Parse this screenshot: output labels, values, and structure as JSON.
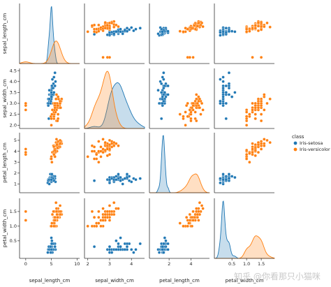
{
  "chart_data": {
    "type": "scatter",
    "kind": "pairplot",
    "variables": [
      "sepal_length_cm",
      "sepal_width_cm",
      "petal_length_cm",
      "petal_width_cm"
    ],
    "legend": {
      "title": "class",
      "placement": "right",
      "entries": [
        {
          "label": "Iris-setosa",
          "color": "#1f77b4"
        },
        {
          "label": "Iris-versicolor",
          "color": "#ff7f0e"
        }
      ]
    },
    "ranges": {
      "sepal_length_cm": [
        -1.2,
        10.5
      ],
      "sepal_width_cm": [
        1.85,
        4.6
      ],
      "petal_length_cm": [
        0.2,
        5.7
      ],
      "petal_width_cm": [
        -0.1,
        1.95
      ]
    },
    "x_ticks": {
      "sepal_length_cm": [
        "0",
        "5",
        "10"
      ],
      "sepal_width_cm": [
        "2",
        "3",
        "4"
      ],
      "petal_length_cm": [
        "2",
        "4"
      ],
      "petal_width_cm": [
        "0.5",
        "1.0",
        "1.5"
      ]
    },
    "y_ticks": {
      "sepal_length_cm": [],
      "sepal_width_cm": [
        "2.0",
        "2.5",
        "3.0",
        "3.5",
        "4.0",
        "4.5"
      ],
      "petal_length_cm": [
        "1",
        "2",
        "3",
        "4",
        "5"
      ],
      "petal_width_cm": [
        "0.5",
        "1.0",
        "1.5"
      ]
    },
    "tick_values": {
      "sepal_length_cm": [
        0,
        5,
        10
      ],
      "sepal_width_cm": [
        2,
        2.5,
        3,
        3.5,
        4,
        4.5
      ],
      "petal_length_cm": [
        1,
        2,
        3,
        4,
        5
      ],
      "petal_width_cm": [
        0.5,
        1.0,
        1.5
      ]
    },
    "series": [
      {
        "name": "Iris-setosa",
        "sepal_length_cm": [
          5.1,
          4.9,
          4.7,
          4.6,
          5.0,
          5.4,
          4.6,
          5.0,
          4.4,
          4.9,
          5.4,
          4.8,
          4.8,
          4.3,
          5.8,
          5.7,
          5.4,
          5.1,
          5.7,
          5.1,
          5.4,
          5.1,
          4.6,
          5.1,
          4.8,
          5.0,
          5.0,
          5.2,
          5.2,
          4.7,
          4.8,
          5.4,
          5.2,
          5.5,
          4.9,
          5.0,
          5.5,
          4.9,
          4.4,
          5.1,
          5.0,
          4.5,
          4.4,
          5.0,
          5.1,
          4.8,
          5.1,
          4.6,
          5.3,
          5.0
        ],
        "sepal_width_cm": [
          3.5,
          3.0,
          3.2,
          3.1,
          3.6,
          3.9,
          3.4,
          3.4,
          2.9,
          3.1,
          3.7,
          3.4,
          3.0,
          3.0,
          4.0,
          4.4,
          3.9,
          3.5,
          3.8,
          3.8,
          3.4,
          3.7,
          3.6,
          3.3,
          3.4,
          3.0,
          3.4,
          3.5,
          3.4,
          3.2,
          3.1,
          3.4,
          4.1,
          4.2,
          3.1,
          3.2,
          3.5,
          3.1,
          3.0,
          3.4,
          3.5,
          2.3,
          3.2,
          3.5,
          3.8,
          3.0,
          3.8,
          3.2,
          3.7,
          3.3
        ],
        "petal_length_cm": [
          1.4,
          1.4,
          1.3,
          1.5,
          1.4,
          1.7,
          1.4,
          1.5,
          1.4,
          1.5,
          1.5,
          1.6,
          1.4,
          1.1,
          1.2,
          1.5,
          1.3,
          1.4,
          1.7,
          1.5,
          1.7,
          1.5,
          1.0,
          1.7,
          1.9,
          1.6,
          1.6,
          1.5,
          1.4,
          1.6,
          1.6,
          1.5,
          1.5,
          1.4,
          1.5,
          1.2,
          1.3,
          1.5,
          1.3,
          1.5,
          1.3,
          1.3,
          1.3,
          1.6,
          1.9,
          1.4,
          1.6,
          1.4,
          1.5,
          1.4
        ],
        "petal_width_cm": [
          0.2,
          0.2,
          0.2,
          0.2,
          0.2,
          0.4,
          0.3,
          0.2,
          0.2,
          0.1,
          0.2,
          0.2,
          0.1,
          0.1,
          0.2,
          0.4,
          0.4,
          0.3,
          0.3,
          0.3,
          0.2,
          0.4,
          0.2,
          0.5,
          0.2,
          0.2,
          0.4,
          0.2,
          0.2,
          0.2,
          0.2,
          0.4,
          0.1,
          0.2,
          0.1,
          0.2,
          0.2,
          0.1,
          0.2,
          0.2,
          0.3,
          0.3,
          0.2,
          0.6,
          0.4,
          0.3,
          0.2,
          0.2,
          0.2,
          0.2
        ]
      },
      {
        "name": "Iris-versicolor",
        "sepal_length_cm": [
          7.0,
          6.4,
          6.9,
          5.5,
          6.5,
          5.7,
          6.3,
          4.9,
          6.6,
          5.2,
          5.0,
          5.9,
          6.0,
          6.1,
          5.6,
          6.7,
          5.6,
          5.8,
          6.2,
          5.6,
          5.9,
          6.1,
          6.3,
          6.1,
          6.4,
          6.6,
          6.8,
          6.7,
          6.0,
          5.7,
          5.5,
          5.5,
          5.8,
          6.0,
          5.4,
          6.0,
          6.7,
          6.3,
          5.6,
          5.5,
          5.5,
          6.1,
          5.8,
          5.0,
          5.6,
          5.7,
          5.7,
          6.2,
          5.1,
          5.7,
          0.0,
          0.0,
          0.0
        ],
        "sepal_width_cm": [
          3.2,
          3.2,
          3.1,
          2.3,
          2.8,
          2.8,
          3.3,
          2.4,
          2.9,
          2.7,
          2.0,
          3.0,
          2.2,
          2.9,
          2.9,
          3.1,
          3.0,
          2.7,
          2.2,
          2.5,
          3.2,
          2.8,
          2.5,
          2.8,
          2.9,
          3.0,
          2.8,
          3.0,
          2.9,
          2.6,
          2.4,
          2.4,
          2.7,
          2.7,
          3.0,
          3.4,
          3.1,
          2.3,
          3.0,
          2.5,
          2.6,
          3.0,
          2.6,
          2.3,
          2.7,
          3.0,
          2.9,
          2.9,
          2.5,
          2.8,
          2.9,
          3.0,
          2.7
        ],
        "petal_length_cm": [
          4.7,
          4.5,
          4.9,
          4.0,
          4.6,
          4.5,
          4.7,
          3.3,
          4.6,
          3.9,
          3.5,
          4.2,
          4.0,
          4.7,
          3.6,
          4.4,
          4.5,
          4.1,
          4.5,
          3.9,
          4.8,
          4.0,
          4.9,
          4.7,
          4.3,
          4.4,
          4.8,
          5.0,
          4.5,
          3.5,
          3.8,
          3.7,
          3.9,
          5.1,
          4.5,
          4.5,
          4.7,
          4.4,
          4.1,
          4.0,
          4.4,
          4.6,
          4.0,
          3.3,
          4.2,
          4.2,
          4.2,
          4.3,
          3.0,
          4.1,
          4.2,
          3.7,
          3.9
        ],
        "petal_width_cm": [
          1.4,
          1.5,
          1.5,
          1.3,
          1.5,
          1.3,
          1.6,
          1.0,
          1.3,
          1.4,
          1.0,
          1.5,
          1.0,
          1.4,
          1.3,
          1.4,
          1.5,
          1.0,
          1.5,
          1.1,
          1.8,
          1.3,
          1.5,
          1.2,
          1.3,
          1.4,
          1.4,
          1.7,
          1.5,
          1.0,
          1.1,
          1.0,
          1.2,
          1.6,
          1.5,
          1.6,
          1.5,
          1.3,
          1.3,
          1.3,
          1.2,
          1.4,
          1.2,
          1.0,
          1.3,
          1.2,
          1.3,
          1.3,
          1.1,
          1.3,
          1.5,
          1.2,
          1.2
        ]
      }
    ]
  },
  "watermark": "知乎 @你看那只小猫咪"
}
